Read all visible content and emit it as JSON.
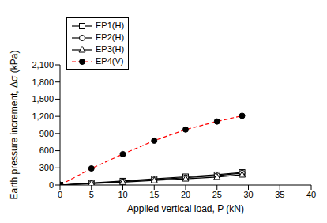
{
  "chart_data": {
    "type": "line",
    "x_label": "Applied vertical load, P (kN)",
    "y_label": "Earth pressure increment, Δσ (kPa)",
    "x": [
      0,
      5,
      10,
      15,
      20,
      25,
      29
    ],
    "xlim": [
      0,
      40
    ],
    "xticks": [
      0,
      5,
      10,
      15,
      20,
      25,
      30,
      35,
      40
    ],
    "ylim": [
      0,
      2100
    ],
    "yticks": [
      0,
      300,
      600,
      900,
      {
        "value": 1200,
        "label": "1,200"
      },
      {
        "value": 1500,
        "label": "1,500"
      },
      {
        "value": 1800,
        "label": "1,800"
      },
      {
        "value": 2100,
        "label": "2,100"
      }
    ],
    "grid": false,
    "legend": "upper left",
    "series": [
      {
        "name": "EP1(H)",
        "color": "#000000",
        "marker": "square",
        "line_style": "solid",
        "values": [
          0,
          35,
          70,
          110,
          145,
          180,
          220
        ]
      },
      {
        "name": "EP2(H)",
        "color": "#000000",
        "marker": "circle",
        "line_style": "solid",
        "values": [
          0,
          30,
          60,
          95,
          130,
          165,
          210
        ]
      },
      {
        "name": "EP3(H)",
        "color": "#000000",
        "marker": "triangle",
        "line_style": "solid",
        "values": [
          0,
          25,
          50,
          80,
          110,
          140,
          180
        ]
      },
      {
        "name": "EP4(V)",
        "color": "#ff0000",
        "marker": "filled_circle",
        "line_style": "dashed",
        "values": [
          0,
          290,
          540,
          775,
          970,
          1110,
          1210
        ]
      }
    ]
  }
}
